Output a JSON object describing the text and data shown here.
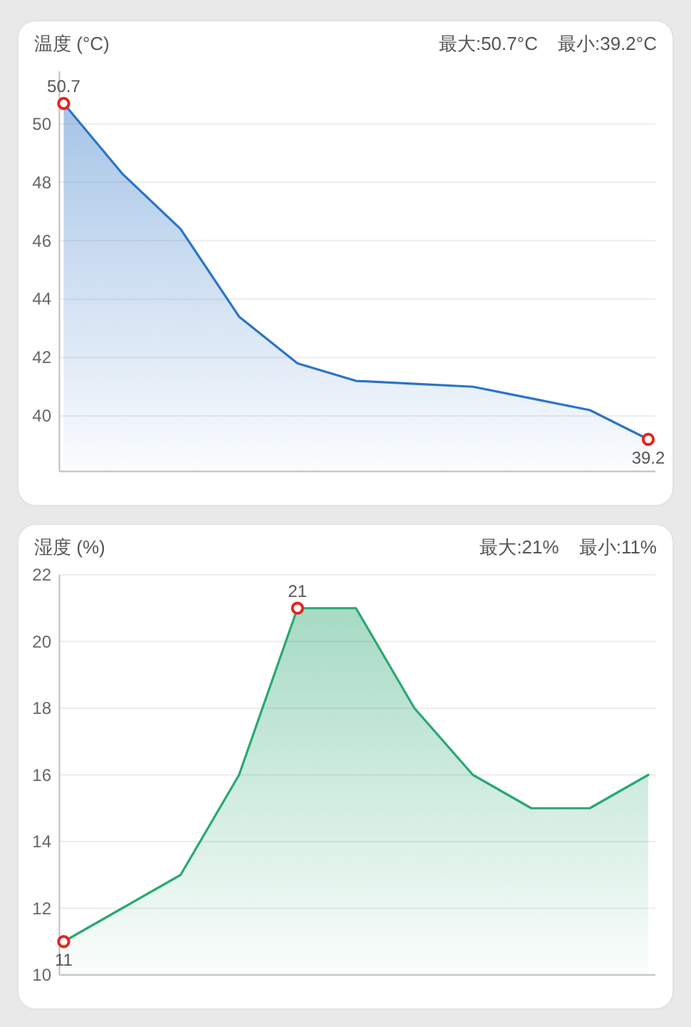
{
  "chart_data": [
    {
      "type": "area",
      "title": "温度 (°C)",
      "annotations": [
        "最大:50.7°C",
        "最小:39.2°C"
      ],
      "categories": [
        null,
        null,
        null,
        null,
        null,
        null,
        null,
        null,
        null,
        null,
        null
      ],
      "values": [
        50.7,
        48.3,
        46.4,
        43.4,
        41.8,
        41.2,
        41.1,
        41.0,
        40.6,
        40.2,
        39.2
      ],
      "value_labels": [
        "50.7",
        null,
        null,
        null,
        null,
        null,
        null,
        null,
        null,
        null,
        "39.2"
      ],
      "color": "#2b74c6",
      "ylim": [
        38.1,
        51.8
      ],
      "yticks": [
        40,
        42,
        44,
        46,
        48,
        50
      ],
      "grid": "y",
      "tick_labels": "y"
    },
    {
      "type": "area",
      "title": "湿度 (%)",
      "annotations": [
        "最大:21%",
        "最小:11%"
      ],
      "categories": [
        null,
        null,
        null,
        null,
        null,
        null,
        null,
        null,
        null,
        null,
        null
      ],
      "values": [
        11,
        12,
        13,
        16,
        21,
        21,
        18,
        16,
        15,
        15,
        16
      ],
      "value_labels": [
        "11",
        null,
        null,
        null,
        "21",
        null,
        null,
        null,
        null,
        null,
        null
      ],
      "color": "#2aa872",
      "ylim": [
        10,
        22
      ],
      "yticks": [
        10,
        12,
        14,
        16,
        18,
        20,
        22
      ],
      "grid": "y",
      "tick_labels": "y"
    }
  ]
}
